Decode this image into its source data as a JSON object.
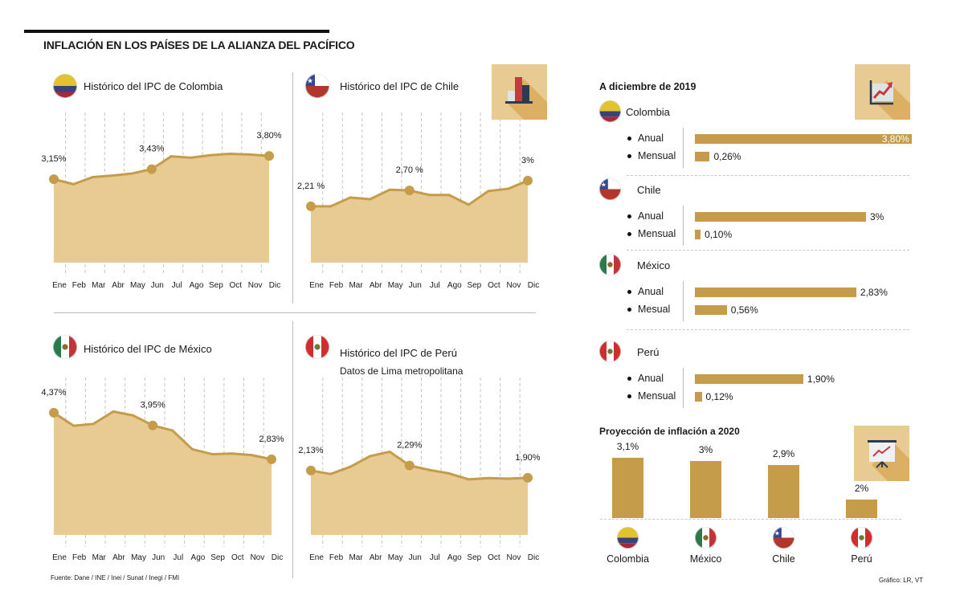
{
  "title": "INFLACIÓN EN LOS PAÍSES DE LA ALIANZA DEL PACÍFICO",
  "colors": {
    "fill": "#e8cb93",
    "line": "#c59d4a",
    "bar": "#c59d4a",
    "icon_bg": "#e8cb93"
  },
  "chart_data": [
    {
      "id": "colombia",
      "type": "area",
      "title": "Histórico del IPC de Colombia",
      "flag": "colombia-flag",
      "categories": [
        "Ene",
        "Feb",
        "Mar",
        "Abr",
        "May",
        "Jun",
        "Jul",
        "Ago",
        "Sep",
        "Oct",
        "Nov",
        "Dic"
      ],
      "values": [
        3.15,
        3.01,
        3.21,
        3.25,
        3.31,
        3.43,
        3.79,
        3.75,
        3.82,
        3.86,
        3.84,
        3.8
      ],
      "highlighted": [
        {
          "index": 0,
          "label": "3,15%"
        },
        {
          "index": 5,
          "label": "3,43%"
        },
        {
          "index": 11,
          "label": "3,80%"
        }
      ],
      "ylim": [
        0.82,
        4.79
      ],
      "grid": "vertical-dashed"
    },
    {
      "id": "chile",
      "type": "area",
      "title": "Histórico del IPC de Chile",
      "flag": "chile-flag",
      "categories": [
        "Ene",
        "Feb",
        "Mar",
        "Abr",
        "May",
        "Jun",
        "Jul",
        "Ago",
        "Sep",
        "Oct",
        "Nov",
        "Dic"
      ],
      "values": [
        2.21,
        2.21,
        2.48,
        2.43,
        2.72,
        2.7,
        2.56,
        2.56,
        2.26,
        2.68,
        2.75,
        3.0
      ],
      "highlighted": [
        {
          "index": 0,
          "label": "2,21 %"
        },
        {
          "index": 5,
          "label": "2,70 %"
        },
        {
          "index": 11,
          "label": "3%"
        }
      ],
      "ylim": [
        0.48,
        4.85
      ],
      "grid": "vertical-dashed"
    },
    {
      "id": "mexico",
      "type": "area",
      "title": "Histórico del IPC de México",
      "flag": "mexico-flag",
      "categories": [
        "Ene",
        "Feb",
        "Mar",
        "Abr",
        "May",
        "Jun",
        "Jul",
        "Ago",
        "Sep",
        "Oct",
        "Nov",
        "Dic"
      ],
      "values": [
        4.37,
        3.94,
        4.0,
        4.41,
        4.28,
        3.95,
        3.78,
        3.16,
        3.0,
        3.02,
        2.97,
        2.83
      ],
      "highlighted": [
        {
          "index": 0,
          "label": "4,37%"
        },
        {
          "index": 5,
          "label": "3,95%"
        },
        {
          "index": 11,
          "label": "2,83%"
        }
      ],
      "ylim": [
        0.33,
        5.27
      ],
      "grid": "vertical-dashed"
    },
    {
      "id": "peru",
      "type": "area",
      "title": "Histórico del IPC de Perú",
      "subtitle": "Datos de Lima metropolitana",
      "flag": "peru-flag",
      "categories": [
        "Ene",
        "Feb",
        "Mar",
        "Abr",
        "May",
        "Jun",
        "Jul",
        "Ago",
        "Sep",
        "Oct",
        "Nov",
        "Dic"
      ],
      "values": [
        2.13,
        2.02,
        2.25,
        2.59,
        2.73,
        2.29,
        2.15,
        2.04,
        1.85,
        1.89,
        1.87,
        1.9
      ],
      "highlighted": [
        {
          "index": 0,
          "label": "2,13%"
        },
        {
          "index": 5,
          "label": "2,29%"
        },
        {
          "index": 11,
          "label": "1,90%"
        }
      ],
      "ylim": [
        0.08,
        4.84
      ],
      "grid": "vertical-dashed"
    },
    {
      "id": "diciembre",
      "type": "bar",
      "orientation": "horizontal",
      "title": "A diciembre de 2019",
      "groups": [
        {
          "country": "Colombia",
          "flag": "colombia-flag",
          "rows": [
            {
              "label": "Anual",
              "value": 3.8,
              "text": "3,80%"
            },
            {
              "label": "Mensual",
              "value": 0.26,
              "text": "0,26%"
            }
          ]
        },
        {
          "country": "Chile",
          "flag": "chile-flag",
          "rows": [
            {
              "label": "Anual",
              "value": 3.0,
              "text": "3%"
            },
            {
              "label": "Mensual",
              "value": 0.1,
              "text": "0,10%"
            }
          ]
        },
        {
          "country": "México",
          "flag": "mexico-flag",
          "rows": [
            {
              "label": "Anual",
              "value": 2.83,
              "text": "2,83%"
            },
            {
              "label": "Mesual",
              "value": 0.56,
              "text": "0,56%"
            }
          ]
        },
        {
          "country": "Perú",
          "flag": "peru-flag",
          "rows": [
            {
              "label": "Anual",
              "value": 1.9,
              "text": "1,90%"
            },
            {
              "label": "Mensual",
              "value": 0.12,
              "text": "0,12%"
            }
          ]
        }
      ]
    },
    {
      "id": "proyeccion",
      "type": "bar",
      "title": "Proyección de inflación a 2020",
      "categories": [
        "Colombia",
        "México",
        "Chile",
        "Perú"
      ],
      "flags": [
        "colombia-flag",
        "mexico-flag",
        "chile-flag",
        "peru-flag"
      ],
      "values": [
        3.1,
        3.0,
        2.9,
        2.0
      ],
      "labels": [
        "3,1%",
        "3%",
        "2,9%",
        "2%"
      ],
      "ylim": [
        1.52,
        3.3
      ]
    }
  ],
  "footer": {
    "source": "Fuente: Dane / INE / Inei / Sunat / Inegi / FMI",
    "credit": "Gráfico: LR, VT"
  },
  "icons": [
    "bar-chart-icon",
    "growth-chart-icon",
    "presentation-chart-icon"
  ]
}
